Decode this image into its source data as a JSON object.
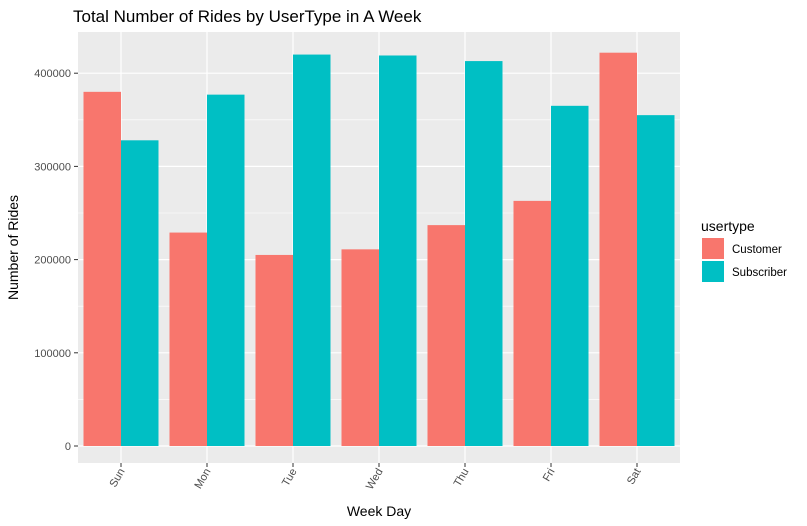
{
  "chart_data": {
    "type": "bar",
    "title": "Total Number of Rides by UserType in A Week",
    "xlabel": "Week Day",
    "ylabel": "Number of Rides",
    "categories": [
      "Sun",
      "Mon",
      "Tue",
      "Wed",
      "Thu",
      "Fri",
      "Sat"
    ],
    "series": [
      {
        "name": "Customer",
        "color": "#F8766D",
        "values": [
          380000,
          229000,
          205000,
          211000,
          237000,
          263000,
          422000
        ]
      },
      {
        "name": "Subscriber",
        "color": "#00BFC4",
        "values": [
          328000,
          377000,
          420000,
          419000,
          413000,
          365000,
          355000
        ]
      }
    ],
    "ylim": [
      0,
      450000
    ],
    "yticks": [
      0,
      100000,
      200000,
      300000,
      400000
    ],
    "ytick_labels": [
      "0",
      "100000",
      "200000",
      "300000",
      "400000"
    ],
    "grid": true,
    "legend": {
      "title": "usertype",
      "position": "right"
    },
    "panel_background": "#EBEBEB",
    "grid_color": "#FFFFFF"
  }
}
